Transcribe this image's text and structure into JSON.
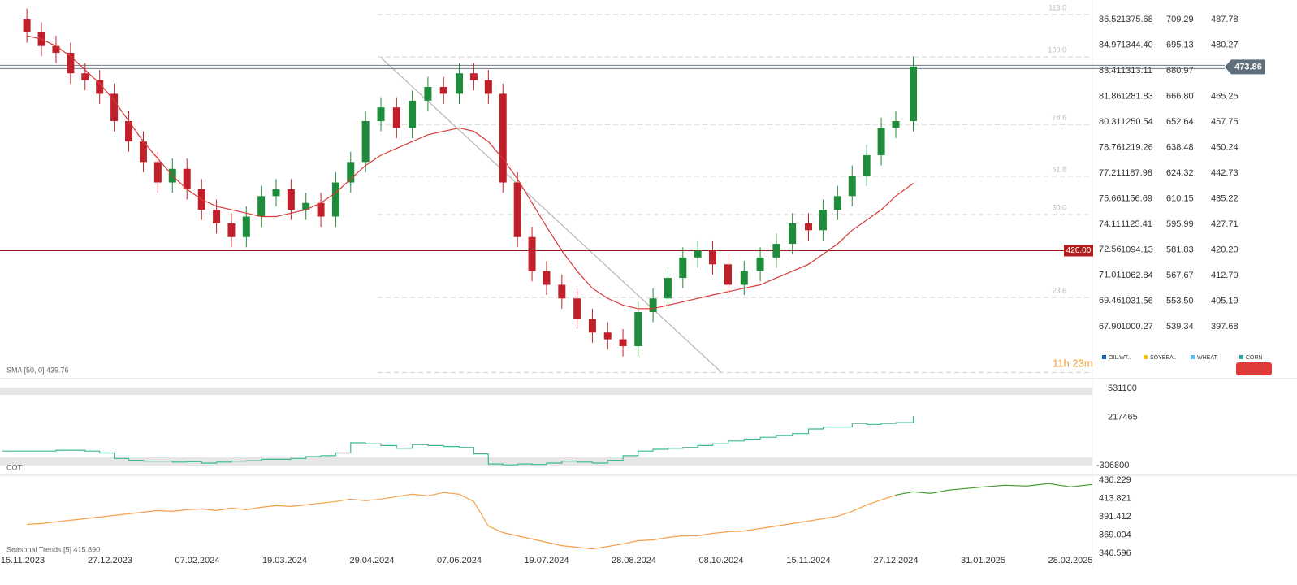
{
  "chart_data": {
    "type": "candlestick",
    "ylim": [
      383.9,
      493.5
    ],
    "yticks": [
      487.78,
      480.27,
      465.25,
      457.75,
      {
        "value": 450.24,
        "label": "450.24"
      },
      442.73,
      435.22,
      427.71,
      {
        "value": 420.2,
        "label": "420.20"
      },
      {
        "value": 412.7,
        "label": "412.70"
      },
      405.19,
      397.68
    ],
    "other_axes": [
      {
        "ylim": [
          65.04,
          87.7
        ],
        "ticks": [
          86.52,
          84.97,
          83.41,
          81.86,
          80.31,
          78.76,
          77.21,
          75.66,
          74.11,
          72.56,
          71.01,
          69.46,
          {
            "value": 67.9,
            "label": "67.90"
          }
        ]
      },
      {
        "ylim": [
          942.6,
          1399.52
        ],
        "ticks": [
          1375.68,
          {
            "value": 1344.4,
            "label": "1344.40"
          },
          1313.11,
          1281.83,
          1250.54,
          1219.26,
          1187.98,
          1156.69,
          1125.41,
          1094.13,
          1062.84,
          1031.56,
          1000.27
        ]
      },
      {
        "ylim": [
          513.26,
          720.08
        ],
        "ticks": [
          709.29,
          695.13,
          680.97,
          {
            "value": 666.8,
            "label": "666.80"
          },
          652.64,
          638.48,
          624.32,
          610.15,
          595.99,
          581.83,
          567.67,
          {
            "value": 553.5,
            "label": "553.50"
          },
          539.34
        ]
      }
    ],
    "legend": [
      {
        "name": "OIL.WT..",
        "color": "#1565c0"
      },
      {
        "name": "SOYBEA..",
        "color": "#f5c400"
      },
      {
        "name": "WHEAT",
        "color": "#4fc3f7"
      },
      {
        "name": "CORN",
        "color": "#26a69a"
      }
    ],
    "current_price": 473.86,
    "level_line": {
      "value": 420,
      "label": "420.00"
    },
    "countdown": "11h 23m",
    "fib_levels": [
      {
        "label": "113.0",
        "price": 489.2
      },
      {
        "label": "100.0",
        "price": 476.8
      },
      {
        "label": "78.6",
        "price": 457.0
      },
      {
        "label": "61.8",
        "price": 441.8
      },
      {
        "label": "50.0",
        "price": 430.6
      },
      {
        "label": "23.6",
        "price": 406.3
      },
      {
        "price": 384.3
      }
    ],
    "up_color": "#1e8c3a",
    "down_color": "#c0202a",
    "x_axis_labels": [
      "15.11.2023",
      "27.12.2023",
      "07.02.2024",
      "19.03.2024",
      "29.04.2024",
      "07.06.2024",
      "19.07.2024",
      "28.08.2024",
      "08.10.2024",
      "15.11.2024",
      "27.12.2024",
      "31.01.2025",
      "28.02.2025"
    ],
    "candles": {
      "x": [
        "17.11.2023",
        "24.11.2023",
        "01.12.2023",
        "08.12.2023",
        "15.12.2023",
        "22.12.2023",
        "29.12.2023",
        "05.01.2024",
        "12.01.2024",
        "19.01.2024",
        "26.01.2024",
        "02.02.2024",
        "09.02.2024",
        "16.02.2024",
        "23.02.2024",
        "01.03.2024",
        "08.03.2024",
        "15.03.2024",
        "22.03.2024",
        "29.03.2024",
        "05.04.2024",
        "12.04.2024",
        "19.04.2024",
        "26.04.2024",
        "03.05.2024",
        "10.05.2024",
        "17.05.2024",
        "24.05.2024",
        "31.05.2024",
        "07.06.2024",
        "14.06.2024",
        "21.06.2024",
        "28.06.2024",
        "05.07.2024",
        "12.07.2024",
        "19.07.2024",
        "26.07.2024",
        "02.08.2024",
        "09.08.2024",
        "16.08.2024",
        "23.08.2024",
        "30.08.2024",
        "06.09.2024",
        "13.09.2024",
        "20.09.2024",
        "27.09.2024",
        "04.10.2024",
        "11.10.2024",
        "18.10.2024",
        "25.10.2024",
        "01.11.2024",
        "08.11.2024",
        "15.11.2024",
        "22.11.2024",
        "29.11.2024",
        "06.12.2024",
        "13.12.2024",
        "20.12.2024",
        "27.12.2024",
        "03.01.2025"
      ],
      "open": [
        488,
        484,
        480,
        478,
        472,
        470,
        466,
        458,
        452,
        446,
        440,
        444,
        438,
        432,
        428,
        424,
        430,
        436,
        438,
        432,
        434,
        430,
        440,
        446,
        458,
        462,
        456,
        464,
        468,
        466,
        472,
        470,
        466,
        440,
        424,
        414,
        410,
        406,
        400,
        396,
        394,
        392,
        402,
        406,
        412,
        418,
        420,
        416,
        410,
        414,
        418,
        422,
        428,
        426,
        432,
        436,
        442,
        448,
        456,
        458
      ],
      "high": [
        491,
        487,
        483,
        481,
        475,
        473,
        469,
        461,
        455,
        449,
        447,
        447,
        441,
        435,
        431,
        433,
        439,
        441,
        441,
        437,
        437,
        443,
        449,
        461,
        465,
        465,
        467,
        471,
        471,
        475,
        475,
        473,
        469,
        443,
        427,
        417,
        413,
        409,
        403,
        399,
        397,
        405,
        409,
        415,
        421,
        423,
        423,
        419,
        417,
        421,
        425,
        431,
        431,
        435,
        439,
        445,
        451,
        459,
        461,
        477
      ],
      "low": [
        481,
        477,
        475,
        469,
        467,
        463,
        455,
        449,
        443,
        437,
        437,
        435,
        429,
        425,
        421,
        421,
        427,
        433,
        429,
        429,
        427,
        427,
        437,
        443,
        455,
        453,
        453,
        461,
        463,
        463,
        467,
        463,
        437,
        421,
        411,
        407,
        403,
        397,
        393,
        391,
        389,
        389,
        399,
        403,
        409,
        415,
        413,
        407,
        407,
        411,
        415,
        419,
        423,
        423,
        429,
        433,
        439,
        445,
        453,
        455
      ],
      "close": [
        484,
        480,
        478,
        472,
        470,
        466,
        458,
        452,
        446,
        440,
        444,
        438,
        432,
        428,
        424,
        430,
        436,
        438,
        432,
        434,
        430,
        440,
        446,
        458,
        462,
        456,
        464,
        468,
        466,
        472,
        470,
        466,
        440,
        424,
        414,
        410,
        406,
        400,
        396,
        394,
        392,
        402,
        406,
        412,
        418,
        420,
        416,
        410,
        414,
        418,
        422,
        428,
        426,
        432,
        436,
        442,
        448,
        456,
        458,
        474
      ]
    },
    "sma": {
      "label": "SMA [50, 0] 439.76",
      "color": "#d93a3a",
      "values": [
        483,
        482,
        480,
        477,
        473,
        469,
        464,
        458,
        452,
        447,
        442,
        438,
        435,
        433,
        432,
        431,
        430,
        430,
        431,
        432,
        434,
        437,
        441,
        445,
        448,
        450,
        452,
        454,
        455,
        456,
        455,
        452,
        447,
        441,
        434,
        427,
        420,
        414,
        409,
        406,
        404,
        403,
        403,
        404,
        405,
        406,
        407,
        408,
        409,
        410,
        412,
        414,
        416,
        419,
        422,
        426,
        429,
        432,
        436,
        439.76
      ]
    },
    "cot": {
      "label": "COT",
      "color": "#3dbb8c",
      "ylim": [
        -306800,
        531100
      ],
      "yticks": [
        531100,
        217465,
        -306800
      ],
      "x": [
        "17.11.2023",
        "24.11.2023",
        "01.12.2023",
        "08.12.2023",
        "15.12.2023",
        "22.12.2023",
        "29.12.2023",
        "05.01.2024",
        "12.01.2024",
        "19.01.2024",
        "26.01.2024",
        "02.02.2024",
        "09.02.2024",
        "16.02.2024",
        "23.02.2024",
        "01.03.2024",
        "08.03.2024",
        "15.03.2024",
        "22.03.2024",
        "29.03.2024",
        "05.04.2024",
        "12.04.2024",
        "19.04.2024",
        "26.04.2024",
        "03.05.2024",
        "10.05.2024",
        "17.05.2024",
        "24.05.2024",
        "31.05.2024",
        "07.06.2024",
        "14.06.2024",
        "21.06.2024",
        "28.06.2024",
        "05.07.2024",
        "12.07.2024",
        "19.07.2024",
        "26.07.2024",
        "02.08.2024",
        "09.08.2024",
        "16.08.2024",
        "23.08.2024",
        "30.08.2024",
        "06.09.2024",
        "13.09.2024",
        "20.09.2024",
        "27.09.2024",
        "04.10.2024",
        "11.10.2024",
        "18.10.2024",
        "25.10.2024",
        "01.11.2024",
        "08.11.2024",
        "15.11.2024",
        "22.11.2024",
        "29.11.2024",
        "06.12.2024",
        "13.12.2024",
        "20.12.2024",
        "27.12.2024",
        "03.01.2025"
      ],
      "values": [
        -150000,
        -150000,
        -140000,
        -140000,
        -150000,
        -170000,
        -230000,
        -250000,
        -260000,
        -260000,
        -270000,
        -265000,
        -280000,
        -270000,
        -260000,
        -255000,
        -240000,
        -240000,
        -230000,
        -210000,
        -200000,
        -170000,
        -60000,
        -70000,
        -90000,
        -120000,
        -80000,
        -90000,
        -100000,
        -110000,
        -180000,
        -290000,
        -300000,
        -290000,
        -295000,
        -280000,
        -260000,
        -270000,
        -280000,
        -250000,
        -200000,
        -150000,
        -130000,
        -120000,
        -110000,
        -90000,
        -70000,
        -40000,
        -20000,
        0,
        20000,
        40000,
        90000,
        110000,
        110000,
        150000,
        140000,
        150000,
        160000,
        230000
      ]
    },
    "seasonal": {
      "label": "Seasonal  Trends  [5]  415.890",
      "ylim": [
        346.596,
        436.229
      ],
      "yticks": [
        436.229,
        413.821,
        391.412,
        369.004,
        346.596
      ],
      "series": [
        {
          "color": "#f5a04a",
          "x": [
            "17.11.2023",
            "24.11.2023",
            "01.12.2023",
            "08.12.2023",
            "15.12.2023",
            "22.12.2023",
            "29.12.2023",
            "05.01.2024",
            "12.01.2024",
            "19.01.2024",
            "26.01.2024",
            "02.02.2024",
            "09.02.2024",
            "16.02.2024",
            "23.02.2024",
            "01.03.2024",
            "08.03.2024",
            "15.03.2024",
            "22.03.2024",
            "29.03.2024",
            "05.04.2024",
            "12.04.2024",
            "19.04.2024",
            "26.04.2024",
            "03.05.2024",
            "10.05.2024",
            "17.05.2024",
            "24.05.2024",
            "31.05.2024",
            "07.06.2024",
            "14.06.2024",
            "21.06.2024",
            "28.06.2024",
            "05.07.2024",
            "12.07.2024",
            "19.07.2024",
            "26.07.2024",
            "02.08.2024",
            "09.08.2024",
            "16.08.2024",
            "23.08.2024",
            "30.08.2024",
            "06.09.2024",
            "13.09.2024",
            "20.09.2024",
            "27.09.2024",
            "04.10.2024",
            "11.10.2024",
            "18.10.2024",
            "25.10.2024",
            "01.11.2024",
            "08.11.2024",
            "15.11.2024",
            "22.11.2024",
            "29.11.2024",
            "06.12.2024",
            "13.12.2024",
            "20.12.2024",
            "27.12.2024"
          ],
          "values": [
            382,
            383,
            385,
            387,
            389,
            391,
            393,
            395,
            397,
            399,
            398,
            400,
            401,
            399,
            402,
            400,
            403,
            405,
            404,
            406,
            408,
            410,
            413,
            411,
            413,
            416,
            419,
            417,
            421,
            419,
            410,
            380,
            372,
            368,
            364,
            360,
            356,
            354,
            352,
            355,
            358,
            362,
            363,
            366,
            368,
            368,
            371,
            373,
            374,
            377,
            380,
            383,
            386,
            389,
            392,
            398,
            406,
            412,
            418
          ]
        },
        {
          "color": "#3f9a2a",
          "x": [
            "27.12.2024",
            "03.01.2025",
            "10.01.2025",
            "17.01.2025",
            "24.01.2025",
            "31.01.2025",
            "07.02.2025",
            "14.02.2025",
            "21.02.2025",
            "28.02.2025",
            "07.03.2025"
          ],
          "values": [
            418,
            422,
            420,
            424,
            426,
            428,
            430,
            429,
            432,
            428,
            431
          ]
        }
      ]
    }
  }
}
